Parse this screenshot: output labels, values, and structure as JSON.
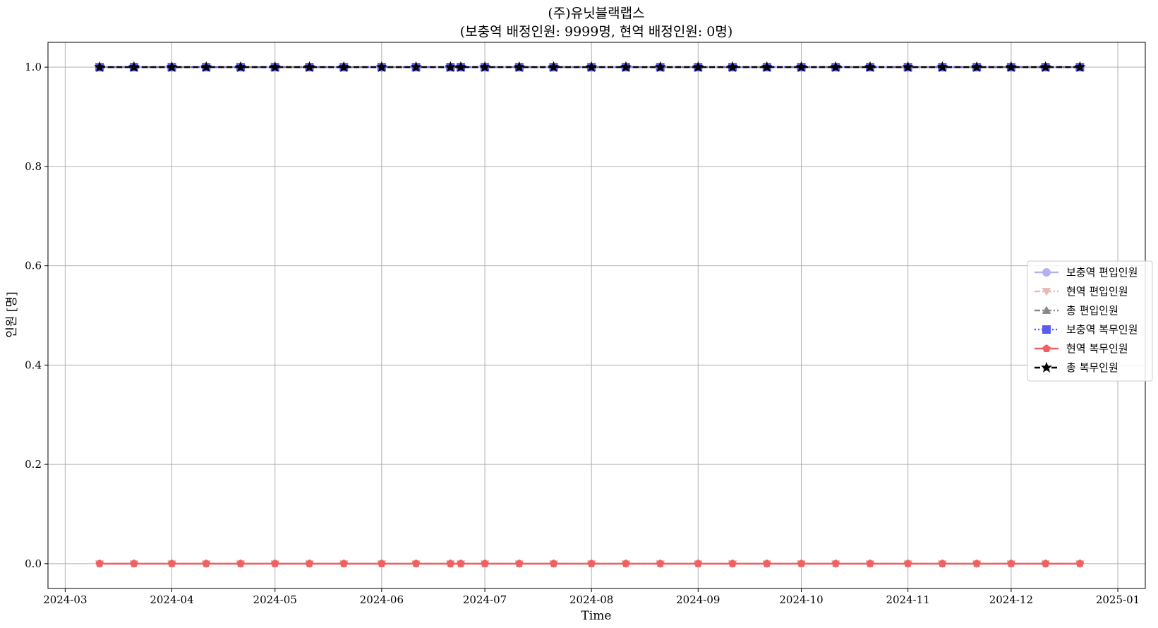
{
  "chart_data": {
    "type": "line",
    "title": "(주)유닛블랙랩스",
    "subtitle": "(보충역 배정인원: 9999명, 현역 배정인원: 0명)",
    "xlabel": "Time",
    "ylabel": "인원 [명]",
    "xlim": [
      "2024-02-25",
      "2025-01-09"
    ],
    "ylim": [
      -0.05,
      1.05
    ],
    "x_ticks": [
      "2024-03",
      "2024-04",
      "2024-05",
      "2024-06",
      "2024-07",
      "2024-08",
      "2024-09",
      "2024-10",
      "2024-11",
      "2024-12",
      "2025-01"
    ],
    "y_ticks": [
      "0.0",
      "0.2",
      "0.4",
      "0.6",
      "0.8",
      "1.0"
    ],
    "grid": true,
    "legend_position": "center-right",
    "x": [
      "2024-03-11",
      "2024-03-21",
      "2024-04-01",
      "2024-04-11",
      "2024-04-21",
      "2024-05-01",
      "2024-05-11",
      "2024-05-21",
      "2024-06-01",
      "2024-06-11",
      "2024-06-21",
      "2024-06-24",
      "2024-07-01",
      "2024-07-11",
      "2024-07-21",
      "2024-08-01",
      "2024-08-11",
      "2024-08-21",
      "2024-09-01",
      "2024-09-11",
      "2024-09-21",
      "2024-10-01",
      "2024-10-11",
      "2024-10-21",
      "2024-11-01",
      "2024-11-11",
      "2024-11-21",
      "2024-12-01",
      "2024-12-11",
      "2024-12-21"
    ],
    "series": [
      {
        "name": "보충역 편입인원",
        "color": "#b2b2f0",
        "marker": "circle",
        "dash": "solid",
        "values": [
          1,
          1,
          1,
          1,
          1,
          1,
          1,
          1,
          1,
          1,
          1,
          1,
          1,
          1,
          1,
          1,
          1,
          1,
          1,
          1,
          1,
          1,
          1,
          1,
          1,
          1,
          1,
          1,
          1,
          1
        ]
      },
      {
        "name": "현역 편입인원",
        "color": "#e8b8b8",
        "marker": "triangle-down",
        "dash": "dashdot",
        "values": [
          0,
          0,
          0,
          0,
          0,
          0,
          0,
          0,
          0,
          0,
          0,
          0,
          0,
          0,
          0,
          0,
          0,
          0,
          0,
          0,
          0,
          0,
          0,
          0,
          0,
          0,
          0,
          0,
          0,
          0
        ]
      },
      {
        "name": "총 편입인원",
        "color": "#888888",
        "marker": "triangle-up",
        "dash": "dashdot",
        "values": [
          1,
          1,
          1,
          1,
          1,
          1,
          1,
          1,
          1,
          1,
          1,
          1,
          1,
          1,
          1,
          1,
          1,
          1,
          1,
          1,
          1,
          1,
          1,
          1,
          1,
          1,
          1,
          1,
          1,
          1
        ]
      },
      {
        "name": "보충역 복무인원",
        "color": "#5b5bf0",
        "marker": "square",
        "dash": "dotted",
        "values": [
          1,
          1,
          1,
          1,
          1,
          1,
          1,
          1,
          1,
          1,
          1,
          1,
          1,
          1,
          1,
          1,
          1,
          1,
          1,
          1,
          1,
          1,
          1,
          1,
          1,
          1,
          1,
          1,
          1,
          1
        ]
      },
      {
        "name": "현역 복무인원",
        "color": "#f06060",
        "marker": "pentagon",
        "dash": "solid",
        "values": [
          0,
          0,
          0,
          0,
          0,
          0,
          0,
          0,
          0,
          0,
          0,
          0,
          0,
          0,
          0,
          0,
          0,
          0,
          0,
          0,
          0,
          0,
          0,
          0,
          0,
          0,
          0,
          0,
          0,
          0
        ]
      },
      {
        "name": "총 복무인원",
        "color": "#000000",
        "marker": "star",
        "dash": "dashed",
        "values": [
          1,
          1,
          1,
          1,
          1,
          1,
          1,
          1,
          1,
          1,
          1,
          1,
          1,
          1,
          1,
          1,
          1,
          1,
          1,
          1,
          1,
          1,
          1,
          1,
          1,
          1,
          1,
          1,
          1,
          1
        ]
      }
    ]
  }
}
